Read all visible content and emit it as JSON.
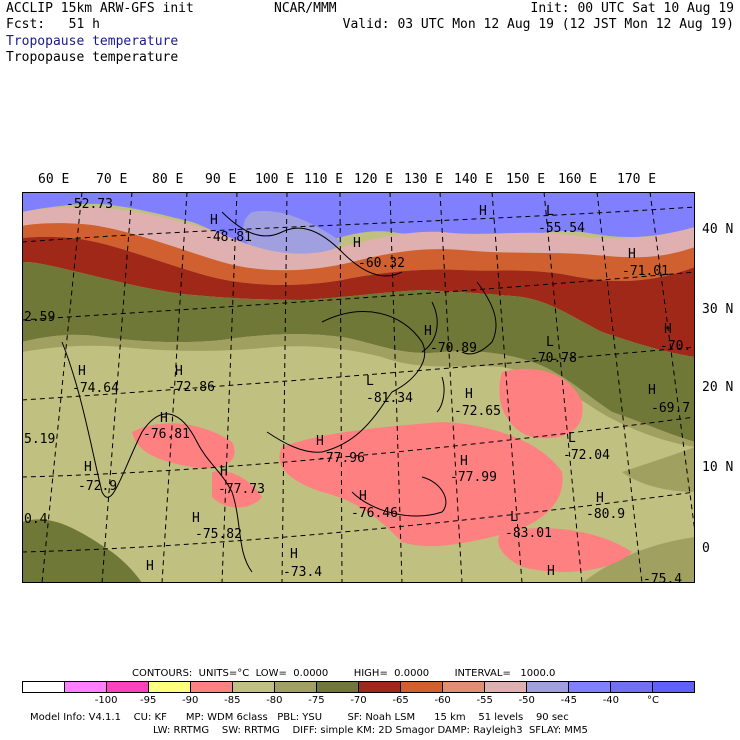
{
  "header": {
    "left1": "ACCLIP 15km ARW-GFS init",
    "left2": "Fcst:   51 h",
    "center": "NCAR/MMM",
    "right1": "Init: 00 UTC Sat 10 Aug 19",
    "right2": "Valid: 03 UTC Mon 12 Aug 19 (12 JST Mon 12 Aug 19)",
    "field1": "Tropopause temperature",
    "field2": "Tropopause temperature"
  },
  "lon_labels": [
    "60 E",
    "70 E",
    "80 E",
    "90 E",
    "100 E",
    "110 E",
    "120 E",
    "130 E",
    "140 E",
    "150 E",
    "160 E",
    "170 E"
  ],
  "lat_labels": [
    "40 N",
    "30 N",
    "20 N",
    "10 N",
    "0"
  ],
  "map_labels": [
    {
      "t": "-52.73"
    },
    {
      "t": "-48.81"
    },
    {
      "t": "-60.32"
    },
    {
      "t": "-55.54"
    },
    {
      "t": "-71.01"
    },
    {
      "t": "2.59"
    },
    {
      "t": "-70.89"
    },
    {
      "t": "-70.78"
    },
    {
      "t": "-70."
    },
    {
      "t": "-74.64"
    },
    {
      "t": "-72.86"
    },
    {
      "t": "-81.34"
    },
    {
      "t": "-72.65"
    },
    {
      "t": "-69.7"
    },
    {
      "t": "5.19"
    },
    {
      "t": "-76.81"
    },
    {
      "t": "-77.96"
    },
    {
      "t": "-72.04"
    },
    {
      "t": "-72.9"
    },
    {
      "t": "-77.73"
    },
    {
      "t": "-77.99"
    },
    {
      "t": "0.4"
    },
    {
      "t": "-76.46"
    },
    {
      "t": "-80.9"
    },
    {
      "t": "-75.82"
    },
    {
      "t": "-83.01"
    },
    {
      "t": "-73.4"
    },
    {
      "t": "-75.4"
    }
  ],
  "hl_markers": [
    "H",
    "H",
    "L",
    "H",
    "H",
    "H",
    "H",
    "L",
    "H",
    "H",
    "H",
    "L",
    "H",
    "H",
    "H",
    "L",
    "H",
    "H",
    "H",
    "H",
    "H",
    "H",
    "H",
    "H",
    "L",
    "H"
  ],
  "contour_info": "CONTOURS:  UNITS=°C  LOW=  0.0000        HIGH=  0.0000        INTERVAL=   1000.0",
  "colorbar": {
    "colors": [
      "#ffffff",
      "#ff80ff",
      "#ff40c0",
      "#ffff80",
      "#ff8080",
      "#c0c080",
      "#a0a060",
      "#707838",
      "#a02818",
      "#d06030",
      "#e09070",
      "#e0b0b0",
      "#a0a0e0",
      "#8080ff",
      "#7070f0",
      "#6060ff"
    ],
    "labels": [
      "-100",
      "-95",
      "-90",
      "-85",
      "-80",
      "-75",
      "-70",
      "-65",
      "-60",
      "-55",
      "-50",
      "-45",
      "-40",
      "°C"
    ]
  },
  "footer1": "Model Info: V4.1.1    CU: KF      MP: WDM 6class   PBL: YSU        SF: Noah LSM      15 km    51 levels    90 sec",
  "footer2": "LW: RRTMG    SW: RRTMG    DIFF: simple KM: 2D Smagor DAMP: Rayleigh3  SFLAY: MM5"
}
